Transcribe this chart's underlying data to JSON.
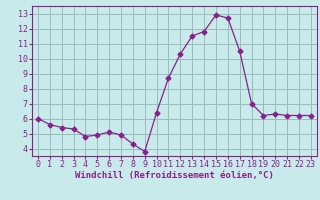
{
  "x": [
    0,
    1,
    2,
    3,
    4,
    5,
    6,
    7,
    8,
    9,
    10,
    11,
    12,
    13,
    14,
    15,
    16,
    17,
    18,
    19,
    20,
    21,
    22,
    23
  ],
  "y": [
    6.0,
    5.6,
    5.4,
    5.3,
    4.8,
    4.9,
    5.1,
    4.9,
    4.3,
    3.8,
    6.4,
    8.7,
    10.3,
    11.5,
    11.8,
    12.9,
    12.7,
    10.5,
    7.0,
    6.2,
    6.3,
    6.2,
    6.2,
    6.2
  ],
  "line_color": "#882288",
  "marker": "D",
  "marker_size": 2.5,
  "bg_color": "#c8eaea",
  "plot_bg_color": "#c8eaea",
  "grid_color": "#99bbbb",
  "xlabel": "Windchill (Refroidissement éolien,°C)",
  "xlabel_color": "#882288",
  "tick_color": "#882288",
  "ylabel_ticks": [
    4,
    5,
    6,
    7,
    8,
    9,
    10,
    11,
    12,
    13
  ],
  "xlim": [
    -0.5,
    23.5
  ],
  "ylim": [
    3.5,
    13.5
  ],
  "axis_label_fontsize": 6.5,
  "tick_fontsize": 6.0,
  "spine_color": "#882288"
}
